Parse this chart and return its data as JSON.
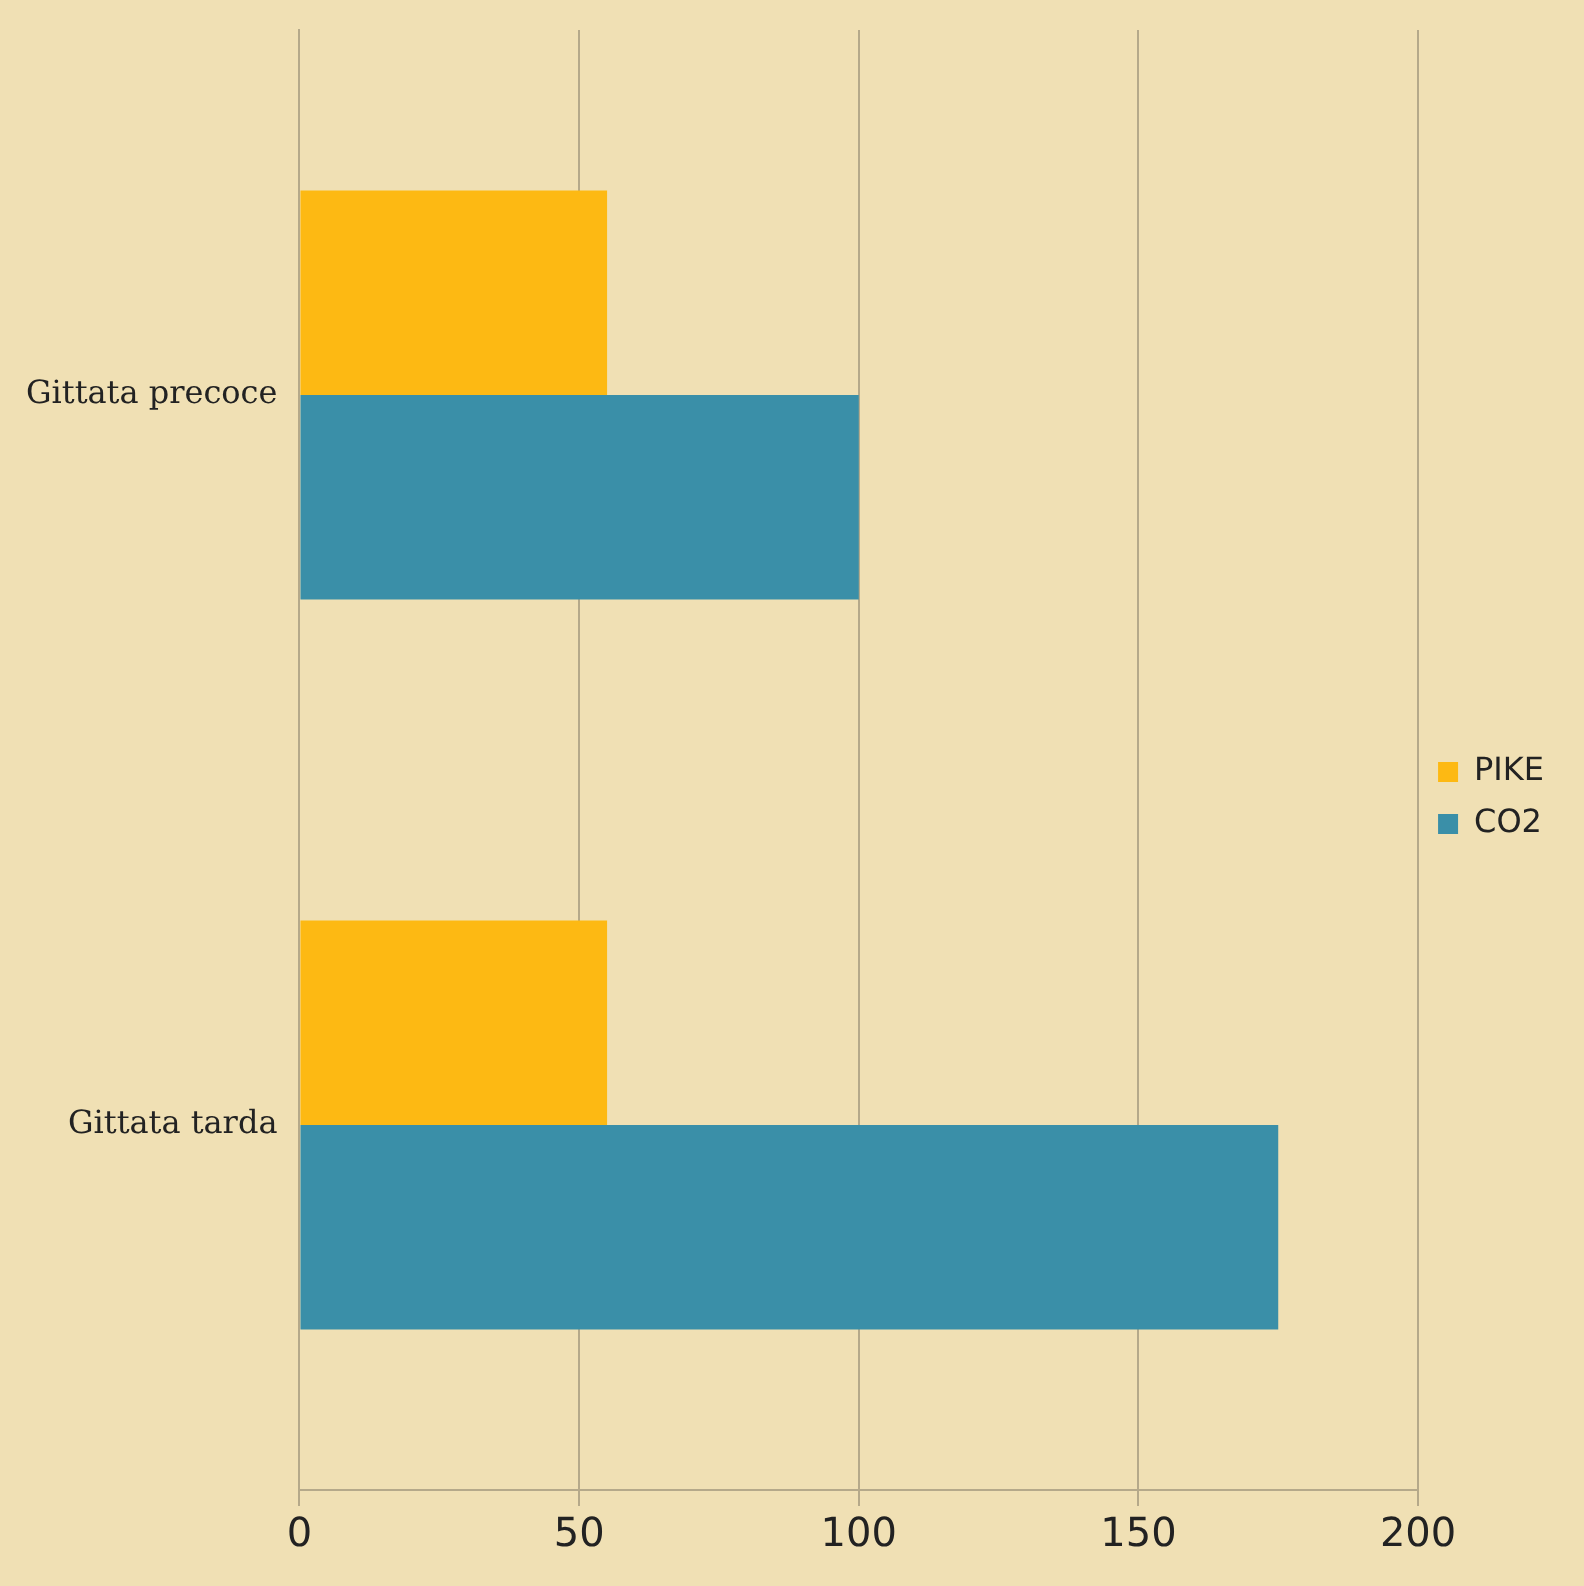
{
  "chart_data": {
    "type": "bar",
    "orientation": "horizontal",
    "categories": [
      "Gittata precoce",
      "Gittata tarda"
    ],
    "series": [
      {
        "name": "PIKE",
        "color": "#fdb913",
        "values": [
          55,
          55
        ]
      },
      {
        "name": "CO2",
        "color": "#3a8fa8",
        "values": [
          100,
          175
        ]
      }
    ],
    "xlim": [
      0,
      200
    ],
    "xticks": [
      0,
      50,
      100,
      150,
      200
    ],
    "grid": "x",
    "legend": "right"
  }
}
